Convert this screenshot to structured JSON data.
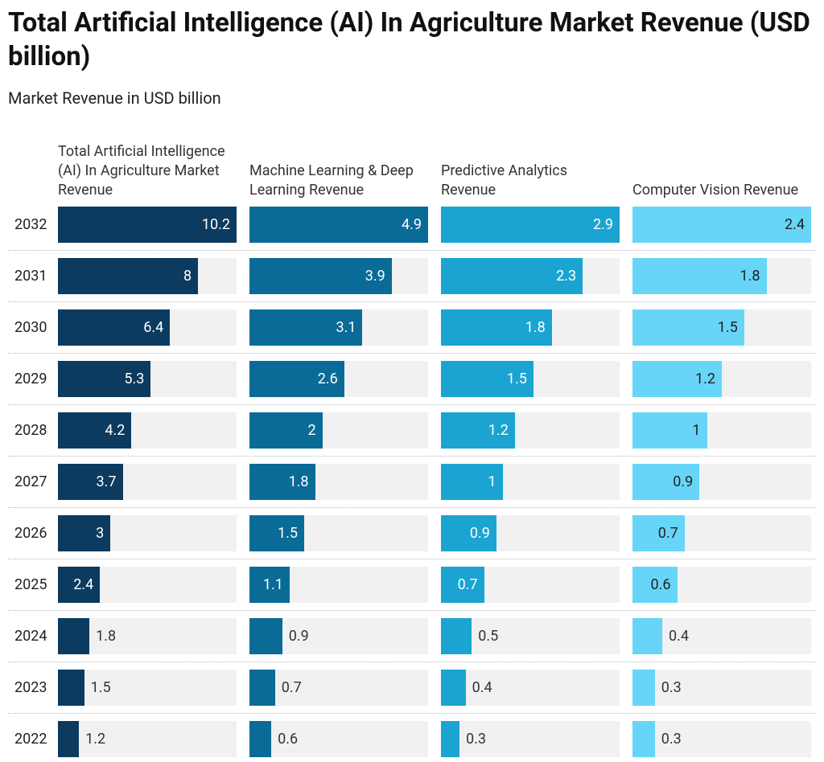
{
  "chart_data": {
    "type": "bar",
    "title": "Total Artificial Intelligence (AI) In Agriculture Market Revenue (USD billion)",
    "subtitle": "Market Revenue in USD billion",
    "categories": [
      "2032",
      "2031",
      "2030",
      "2029",
      "2028",
      "2027",
      "2026",
      "2025",
      "2024",
      "2023",
      "2022"
    ],
    "series": [
      {
        "name": "Total Artificial Intelligence (AI) In Agriculture Market Revenue",
        "color": "#0c3b5f",
        "xlim": [
          0,
          10.2
        ],
        "values": [
          10.2,
          8,
          6.4,
          5.3,
          4.2,
          3.7,
          3,
          2.4,
          1.8,
          1.5,
          1.2
        ]
      },
      {
        "name": "Machine Learning & Deep Learning Revenue",
        "color": "#0a6b97",
        "xlim": [
          0,
          4.9
        ],
        "values": [
          4.9,
          3.9,
          3.1,
          2.6,
          2,
          1.8,
          1.5,
          1.1,
          0.9,
          0.7,
          0.6
        ]
      },
      {
        "name": "Predictive Analytics Revenue",
        "color": "#1ba4d2",
        "xlim": [
          0,
          2.9
        ],
        "values": [
          2.9,
          2.3,
          1.8,
          1.5,
          1.2,
          1,
          0.9,
          0.7,
          0.5,
          0.4,
          0.3
        ]
      },
      {
        "name": "Computer Vision Revenue",
        "color": "#67d5f8",
        "xlim": [
          0,
          2.4
        ],
        "values": [
          2.4,
          1.8,
          1.5,
          1.2,
          1,
          0.9,
          0.7,
          0.6,
          0.4,
          0.3,
          0.3
        ]
      }
    ]
  }
}
